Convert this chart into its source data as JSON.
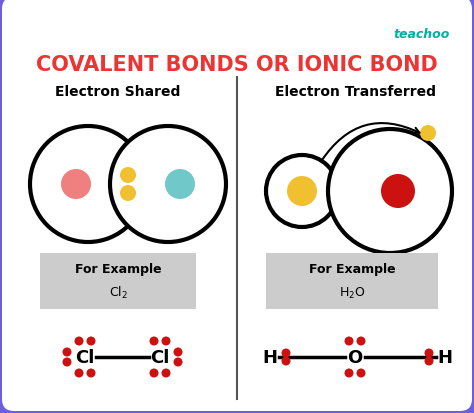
{
  "title": "COVALENT BONDS OR IONIC BOND",
  "title_color": "#ee3333",
  "title_fontsize": 15,
  "background_color": "#ffffff",
  "border_color": "#6b5fe0",
  "teachoo_color": "#00b0a0",
  "left_label": "Electron Shared",
  "right_label": "Electron Transferred",
  "left_example_text": "For Example",
  "left_example_formula": "Cl$_2$",
  "right_example_text": "For Example",
  "right_example_formula": "H$_2$O",
  "pink_dot": "#f08080",
  "teal_dot": "#70c8c8",
  "yellow_dot": "#f0c030",
  "red_dot": "#cc1111",
  "dot_red": "#cc1111"
}
